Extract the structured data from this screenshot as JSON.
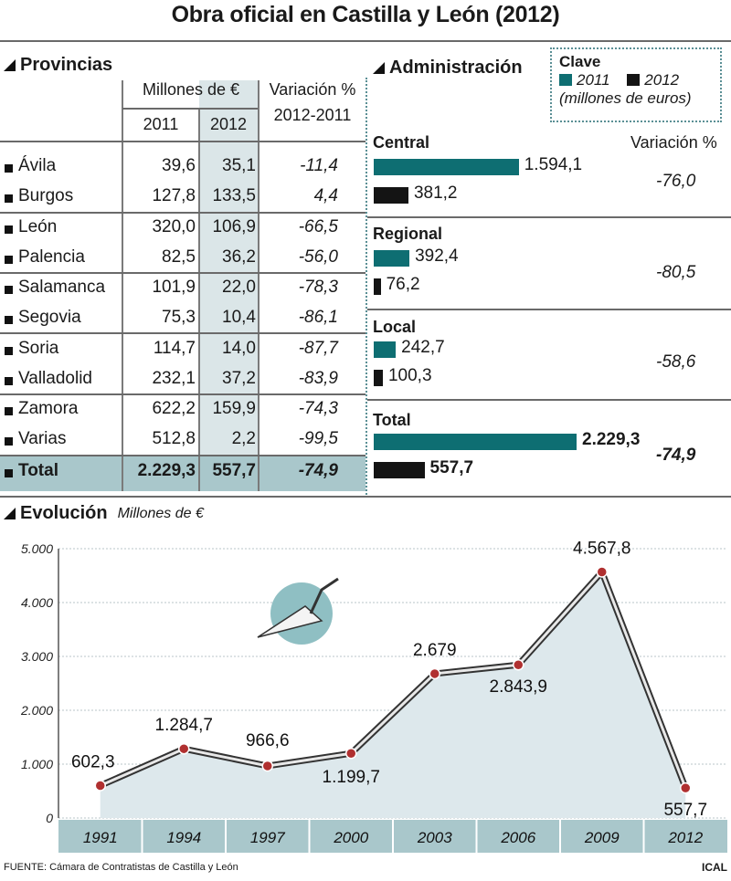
{
  "title": "Obra oficial en Castilla y León (2012)",
  "provincias": {
    "heading": "Provincias",
    "header_money": "Millones de €",
    "header_2011": "2011",
    "header_2012": "2012",
    "header_var": "Variación %",
    "header_var_range": "2012-2011",
    "rows": [
      {
        "name": "Ávila",
        "v2011": "39,6",
        "v2012": "35,1",
        "var": "-11,4"
      },
      {
        "name": "Burgos",
        "v2011": "127,8",
        "v2012": "133,5",
        "var": "4,4"
      },
      {
        "name": "León",
        "v2011": "320,0",
        "v2012": "106,9",
        "var": "-66,5"
      },
      {
        "name": "Palencia",
        "v2011": "82,5",
        "v2012": "36,2",
        "var": "-56,0"
      },
      {
        "name": "Salamanca",
        "v2011": "101,9",
        "v2012": "22,0",
        "var": "-78,3"
      },
      {
        "name": "Segovia",
        "v2011": "75,3",
        "v2012": "10,4",
        "var": "-86,1"
      },
      {
        "name": "Soria",
        "v2011": "114,7",
        "v2012": "14,0",
        "var": "-87,7"
      },
      {
        "name": "Valladolid",
        "v2011": "232,1",
        "v2012": "37,2",
        "var": "-83,9"
      },
      {
        "name": "Zamora",
        "v2011": "622,2",
        "v2012": "159,9",
        "var": "-74,3"
      },
      {
        "name": "Varias",
        "v2011": "512,8",
        "v2012": "2,2",
        "var": "-99,5"
      }
    ],
    "total": {
      "name": "Total",
      "v2011": "2.229,3",
      "v2012": "557,7",
      "var": "-74,9"
    }
  },
  "administracion": {
    "heading": "Administración",
    "clave_title": "Clave",
    "clave_2011": "2011",
    "clave_2012": "2012",
    "clave_units": "(millones de euros)",
    "variation_header": "Variación %",
    "groups": [
      {
        "label": "Central",
        "v2011": 1594.1,
        "v2011_label": "1.594,1",
        "v2012": 381.2,
        "v2012_label": "381,2",
        "var": "-76,0"
      },
      {
        "label": "Regional",
        "v2011": 392.4,
        "v2011_label": "392,4",
        "v2012": 76.2,
        "v2012_label": "76,2",
        "var": "-80,5"
      },
      {
        "label": "Local",
        "v2011": 242.7,
        "v2011_label": "242,7",
        "v2012": 100.3,
        "v2012_label": "100,3",
        "var": "-58,6"
      },
      {
        "label": "Total",
        "v2011": 2229.3,
        "v2011_label": "2.229,3",
        "v2012": 557.7,
        "v2012_label": "557,7",
        "var": "-74,9"
      }
    ]
  },
  "colors": {
    "teal": "#0e6e72",
    "black": "#141414",
    "table_highlight": "#dbe6e8",
    "total_row": "#a9c7cb",
    "area_fill": "#dde8ec",
    "x_band": "#a9c7cb",
    "point": "#b03030"
  },
  "evolucion": {
    "heading": "Evolución",
    "units": "Millones de €"
  },
  "chart_data": {
    "type": "area",
    "title": "Evolución",
    "ylabel": "Millones de €",
    "x": [
      "1991",
      "1994",
      "1997",
      "2000",
      "2003",
      "2006",
      "2009",
      "2012"
    ],
    "values": [
      602.3,
      1284.7,
      966.6,
      1199.7,
      2679,
      2843.9,
      4567.8,
      557.7
    ],
    "value_labels": [
      "602,3",
      "1.284,7",
      "966,6",
      "1.199,7",
      "2.679",
      "2.843,9",
      "4.567,8",
      "557,7"
    ],
    "ylim": [
      0,
      5000
    ],
    "yticks": [
      0,
      1000,
      2000,
      3000,
      4000,
      5000
    ],
    "ytick_labels": [
      "0",
      "1.000",
      "2.000",
      "3.000",
      "4.000",
      "5.000"
    ],
    "grid": true
  },
  "footer": {
    "source": "FUENTE: Cámara de Contratistas de Castilla y León",
    "brand": "ICAL"
  }
}
